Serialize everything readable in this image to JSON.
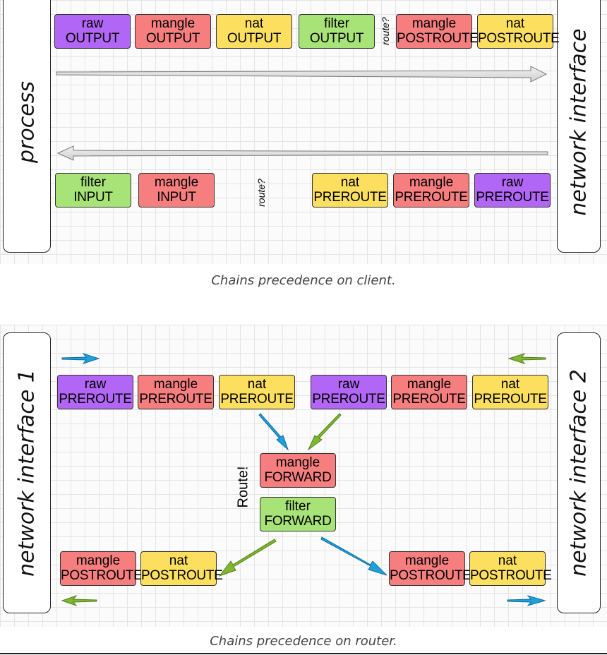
{
  "client": {
    "left_label": "process",
    "right_label": "network interface",
    "caption": "Chains precedence on client.",
    "outgoing": [
      {
        "table": "raw",
        "chain": "OUTPUT"
      },
      {
        "table": "mangle",
        "chain": "OUTPUT"
      },
      {
        "table": "nat",
        "chain": "OUTPUT"
      },
      {
        "table": "filter",
        "chain": "OUTPUT"
      },
      {
        "table": "mangle",
        "chain": "POSTROUTE"
      },
      {
        "table": "nat",
        "chain": "POSTROUTE"
      }
    ],
    "outgoing_route": "route?",
    "incoming": [
      {
        "table": "filter",
        "chain": "INPUT"
      },
      {
        "table": "mangle",
        "chain": "INPUT"
      },
      {
        "table": "nat",
        "chain": "PREROUTE"
      },
      {
        "table": "mangle",
        "chain": "PREROUTE"
      },
      {
        "table": "raw",
        "chain": "PREROUTE"
      }
    ],
    "incoming_route": "route?"
  },
  "router": {
    "left_label": "network interface 1",
    "right_label": "network interface 2",
    "caption": "Chains precedence on router.",
    "pre_left": [
      {
        "table": "raw",
        "chain": "PREROUTE"
      },
      {
        "table": "mangle",
        "chain": "PREROUTE"
      },
      {
        "table": "nat",
        "chain": "PREROUTE"
      }
    ],
    "pre_right": [
      {
        "table": "raw",
        "chain": "PREROUTE"
      },
      {
        "table": "mangle",
        "chain": "PREROUTE"
      },
      {
        "table": "nat",
        "chain": "PREROUTE"
      }
    ],
    "forward": [
      {
        "table": "mangle",
        "chain": "FORWARD"
      },
      {
        "table": "filter",
        "chain": "FORWARD"
      }
    ],
    "route_label": "Route!",
    "post_left": [
      {
        "table": "mangle",
        "chain": "POSTROUTE"
      },
      {
        "table": "nat",
        "chain": "POSTROUTE"
      }
    ],
    "post_right": [
      {
        "table": "mangle",
        "chain": "POSTROUTE"
      },
      {
        "table": "nat",
        "chain": "POSTROUTE"
      }
    ]
  },
  "colors": {
    "raw": "#b266f5",
    "mangle": "#f77e7e",
    "nat": "#fcdf5e",
    "filter": "#a8e378",
    "blue_arrow": "#1ea0dc",
    "green_arrow": "#7db82e",
    "gray_arrow": "#dddddd"
  }
}
